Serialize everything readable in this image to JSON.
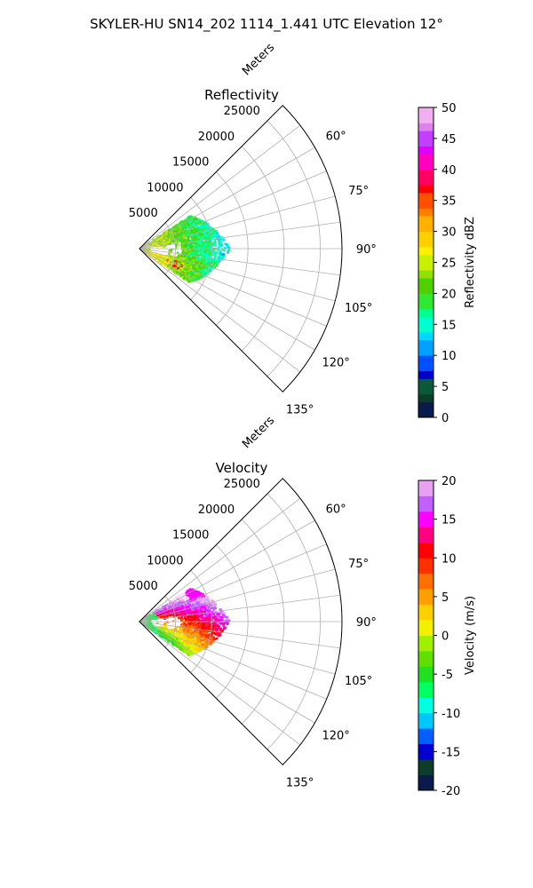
{
  "figure": {
    "title": "SKYLER-HU  SN14_202  1114_1.441 UTC Elevation 12°"
  },
  "chart_data": [
    {
      "type": "polar-sector",
      "title": "Reflectivity",
      "range_label": "Meters",
      "theta_range_deg": [
        45,
        135
      ],
      "r_max": 28000,
      "r_ticks": [
        5000,
        10000,
        15000,
        20000,
        25000
      ],
      "theta_ticks_deg": [
        60,
        75,
        90,
        105,
        120,
        135
      ],
      "colorbar": {
        "label": "Reflectivity dBZ",
        "range": [
          0,
          50
        ],
        "ticks": [
          0,
          5,
          10,
          15,
          20,
          25,
          30,
          35,
          40,
          45,
          50
        ]
      },
      "echo_region": {
        "theta_deg": [
          57,
          124
        ],
        "r_m": [
          0,
          12500
        ]
      }
    },
    {
      "type": "polar-sector",
      "title": "Velocity",
      "range_label": "Meters",
      "theta_range_deg": [
        45,
        135
      ],
      "r_max": 28000,
      "r_ticks": [
        5000,
        10000,
        15000,
        20000,
        25000
      ],
      "theta_ticks_deg": [
        60,
        75,
        90,
        105,
        120,
        135
      ],
      "colorbar": {
        "label": "Velocity (m/s)",
        "range": [
          -20,
          20
        ],
        "ticks": [
          -20,
          -15,
          -10,
          -5,
          0,
          5,
          10,
          15,
          20
        ]
      },
      "echo_region": {
        "theta_deg": [
          57,
          124
        ],
        "r_m": [
          0,
          12500
        ]
      }
    }
  ]
}
